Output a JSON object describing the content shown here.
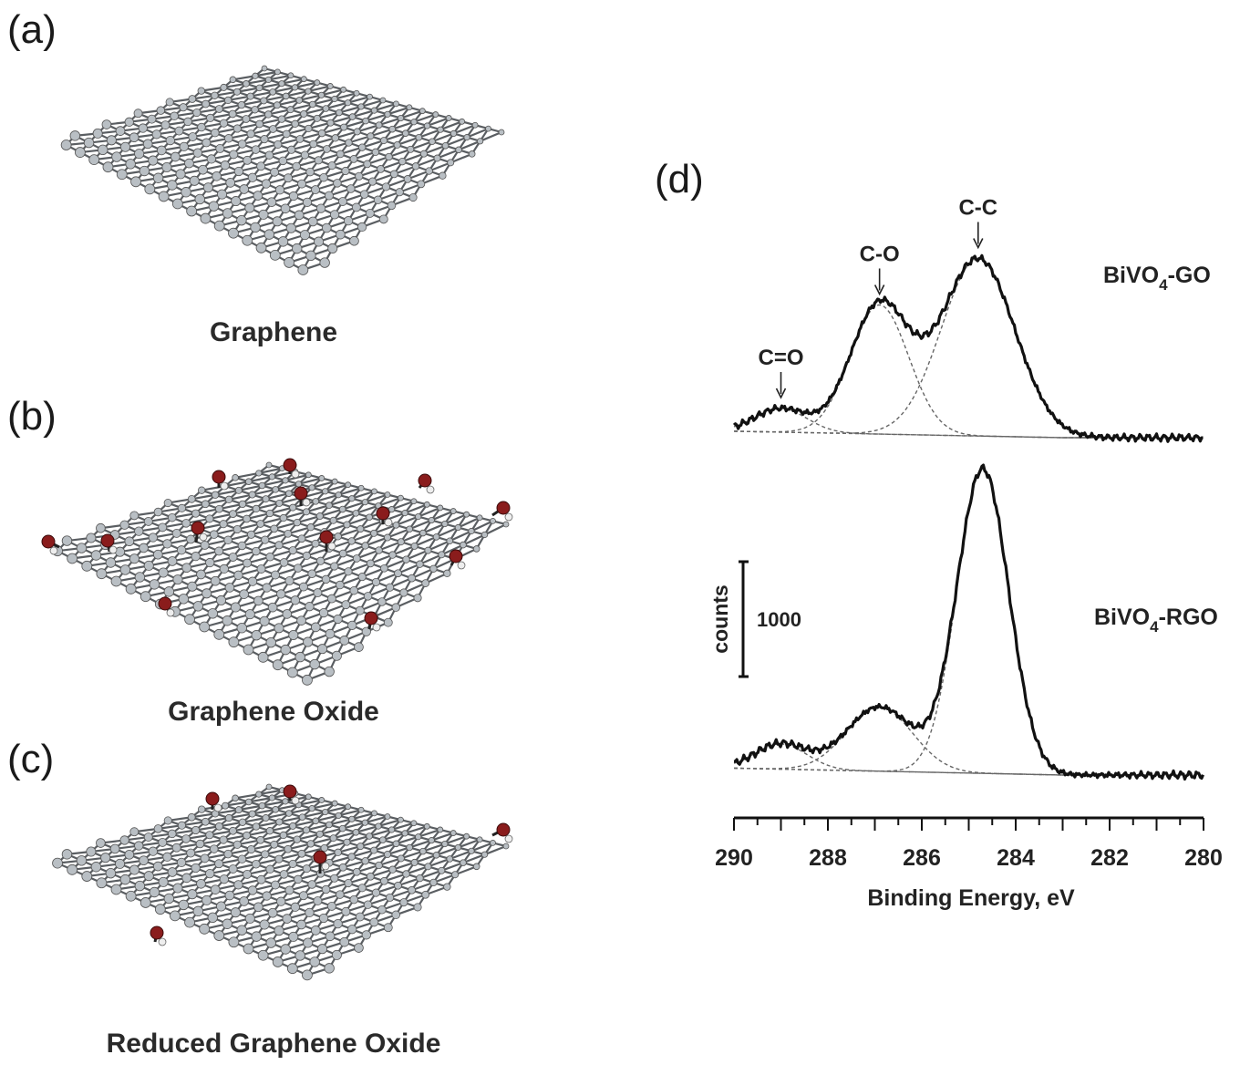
{
  "panels": {
    "a": {
      "label": "(a)",
      "caption": "Graphene"
    },
    "b": {
      "label": "(b)",
      "caption": "Graphene Oxide"
    },
    "c": {
      "label": "(c)",
      "caption": "Reduced Graphene Oxide"
    },
    "d": {
      "label": "(d)"
    }
  },
  "colors": {
    "carbon": "#b9bfc4",
    "oxygen": "#8a1c1c",
    "bond": "#5a5e62",
    "curve": "#111111",
    "fit": "#666666"
  },
  "chart_data": {
    "type": "line",
    "xlabel": "Binding Energy, eV",
    "xlim": [
      290,
      280
    ],
    "x_ticks": [
      290,
      288,
      286,
      284,
      282,
      280
    ],
    "x_tick_labels": [
      "290",
      "288",
      "286",
      "284",
      "282",
      "280"
    ],
    "scale_bar": {
      "axis_label": "counts",
      "value_label": "1000",
      "value": 1000
    },
    "series": [
      {
        "name": "BiVO4-GO",
        "label_main": "BiVO",
        "label_sub": "4",
        "label_tail": "-GO",
        "peaks": [
          {
            "label": "C=O",
            "center": 289.0,
            "height": 220
          },
          {
            "label": "C-O",
            "center": 286.9,
            "height": 1200
          },
          {
            "label": "C-C",
            "center": 284.8,
            "height": 1650
          }
        ],
        "peak_widths": [
          0.55,
          0.62,
          0.78
        ],
        "baseline": [
          [
            290,
            60
          ],
          [
            283,
            0
          ],
          [
            280,
            0
          ]
        ]
      },
      {
        "name": "BiVO4-RGO",
        "label_main": "BiVO",
        "label_sub": "4",
        "label_tail": "-RGO",
        "peaks": [
          {
            "center": 289.0,
            "height": 220
          },
          {
            "center": 286.9,
            "height": 560
          },
          {
            "center": 284.7,
            "height": 2650
          }
        ],
        "peak_widths": [
          0.55,
          0.7,
          0.55
        ],
        "baseline": [
          [
            290,
            60
          ],
          [
            283,
            0
          ],
          [
            280,
            0
          ]
        ]
      }
    ]
  }
}
